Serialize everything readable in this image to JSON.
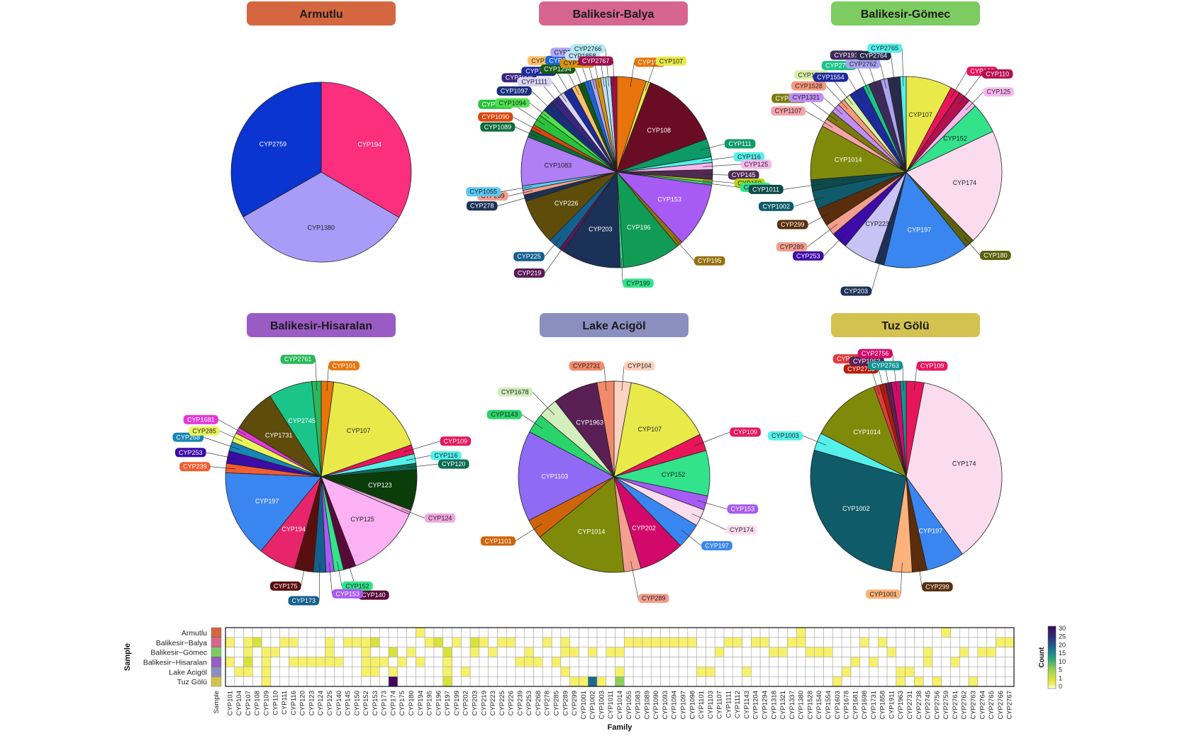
{
  "chart_data": [
    {
      "type": "pie",
      "title": "Armutlu",
      "title_color": "#d4673f",
      "series": [
        {
          "label": "CYP194",
          "value": 33.4,
          "color": "#fb2f7d"
        },
        {
          "label": "CYP1380",
          "value": 33.3,
          "color": "#a89cf8"
        },
        {
          "label": "CYP2759",
          "value": 33.3,
          "color": "#0a35d0"
        }
      ]
    },
    {
      "type": "pie",
      "title": "Balikesir-Balya",
      "title_color": "#d6668f",
      "series": [
        {
          "label": "CYP101",
          "value": 4.2,
          "color": "#e8740b"
        },
        {
          "label": "CYP107",
          "value": 0.6,
          "color": "#e9ea4a"
        },
        {
          "label": "CYP108",
          "value": 11.5,
          "color": "#6b0c25"
        },
        {
          "label": "CYP111",
          "value": 2.6,
          "color": "#0d9968"
        },
        {
          "label": "CYP116",
          "value": 0.8,
          "color": "#55f0ea"
        },
        {
          "label": "CYP125",
          "value": 1.0,
          "color": "#f5b8ed"
        },
        {
          "label": "CYP145",
          "value": 1.4,
          "color": "#4f2a52"
        },
        {
          "label": "CYP150",
          "value": 0.4,
          "color": "#b5d41a"
        },
        {
          "label": "CYP152",
          "value": 0.4,
          "color": "#33e38c"
        },
        {
          "label": "CYP153",
          "value": 9.2,
          "color": "#a85af5"
        },
        {
          "label": "CYP195",
          "value": 0.8,
          "color": "#94700e"
        },
        {
          "label": "CYP196",
          "value": 8.3,
          "color": "#119c55"
        },
        {
          "label": "CYP199",
          "value": 0.4,
          "color": "#33e38c"
        },
        {
          "label": "CYP203",
          "value": 8.5,
          "color": "#1c3158"
        },
        {
          "label": "CYP219",
          "value": 0.6,
          "color": "#5a1a5a"
        },
        {
          "label": "CYP225",
          "value": 1.8,
          "color": "#155f8f"
        },
        {
          "label": "CYP226",
          "value": 6.5,
          "color": "#5e4c0a"
        },
        {
          "label": "CYP278",
          "value": 0.9,
          "color": "#1c3158"
        },
        {
          "label": "CYP289",
          "value": 0.7,
          "color": "#f49e8e"
        },
        {
          "label": "CYP1055",
          "value": 0.6,
          "color": "#5ac8f5"
        },
        {
          "label": "CYP1083",
          "value": 7.0,
          "color": "#b07ef5"
        },
        {
          "label": "CYP1089",
          "value": 1.1,
          "color": "#0d6b3a"
        },
        {
          "label": "CYP1090",
          "value": 0.8,
          "color": "#d9470f"
        },
        {
          "label": "CYP1093",
          "value": 1.6,
          "color": "#29c23a"
        },
        {
          "label": "CYP1094",
          "value": 0.9,
          "color": "#4fe04f"
        },
        {
          "label": "CYP1097",
          "value": 1.5,
          "color": "#1a2f7a"
        },
        {
          "label": "CYP1098",
          "value": 1.3,
          "color": "#3a2580"
        },
        {
          "label": "CYP1111",
          "value": 0.9,
          "color": "#d8d4f5"
        },
        {
          "label": "CYP1112",
          "value": 1.3,
          "color": "#1c2a9a"
        },
        {
          "label": "CYP1204",
          "value": 1.0,
          "color": "#fcc06a"
        },
        {
          "label": "CYP1294",
          "value": 0.9,
          "color": "#145a0f"
        },
        {
          "label": "CYP1337",
          "value": 0.9,
          "color": "#1a66d6"
        },
        {
          "label": "CYP1380",
          "value": 0.7,
          "color": "#b0a6f5"
        },
        {
          "label": "CYP1698",
          "value": 0.8,
          "color": "#d9920d"
        },
        {
          "label": "CYP1858",
          "value": 0.7,
          "color": "#c2def5"
        },
        {
          "label": "CYP2766",
          "value": 0.7,
          "color": "#b3eaf5"
        },
        {
          "label": "CYP2767",
          "value": 0.9,
          "color": "#9a0f4e"
        }
      ]
    },
    {
      "type": "pie",
      "title": "Balikesir-Gömec",
      "title_color": "#7ccc62",
      "series": [
        {
          "label": "CYP107",
          "value": 7.5,
          "color": "#e9ea4a"
        },
        {
          "label": "CYP109",
          "value": 1.6,
          "color": "#e8155a"
        },
        {
          "label": "CYP110",
          "value": 2.0,
          "color": "#b5104e"
        },
        {
          "label": "CYP125",
          "value": 1.3,
          "color": "#f5b8ed"
        },
        {
          "label": "CYP152",
          "value": 5.0,
          "color": "#33e38c"
        },
        {
          "label": "CYP174",
          "value": 19.0,
          "color": "#fbdcef"
        },
        {
          "label": "CYP180",
          "value": 1.5,
          "color": "#5b610c"
        },
        {
          "label": "CYP197",
          "value": 14.0,
          "color": "#3a86f0"
        },
        {
          "label": "CYP203",
          "value": 1.5,
          "color": "#1c3158"
        },
        {
          "label": "CYP223",
          "value": 5.5,
          "color": "#c8c2f5"
        },
        {
          "label": "CYP253",
          "value": 2.7,
          "color": "#3d0ba8"
        },
        {
          "label": "CYP289",
          "value": 1.8,
          "color": "#f49e8e"
        },
        {
          "label": "CYP299",
          "value": 3.0,
          "color": "#5a2e0c"
        },
        {
          "label": "CYP1002",
          "value": 3.0,
          "color": "#0f5b6a"
        },
        {
          "label": "CYP1011",
          "value": 1.8,
          "color": "#0d4a4a"
        },
        {
          "label": "CYP1014",
          "value": 9.0,
          "color": "#808a0a"
        },
        {
          "label": "CYP1107",
          "value": 1.3,
          "color": "#f5a3a8"
        },
        {
          "label": "CYP1318",
          "value": 1.5,
          "color": "#7b7a0c"
        },
        {
          "label": "CYP1321",
          "value": 1.5,
          "color": "#c08ef5"
        },
        {
          "label": "CYP1528",
          "value": 1.2,
          "color": "#f59a7a"
        },
        {
          "label": "CYP1540",
          "value": 1.2,
          "color": "#d9f0a8"
        },
        {
          "label": "CYP1554",
          "value": 2.5,
          "color": "#1c2a9a"
        },
        {
          "label": "CYP2745",
          "value": 1.0,
          "color": "#1bc489"
        },
        {
          "label": "CYP1911",
          "value": 2.0,
          "color": "#3d2a5a"
        },
        {
          "label": "CYP2762",
          "value": 1.2,
          "color": "#a8a4f0"
        },
        {
          "label": "CYP2764",
          "value": 2.0,
          "color": "#2a2a4a"
        },
        {
          "label": "CYP2765",
          "value": 1.0,
          "color": "#55f0ea"
        }
      ]
    },
    {
      "type": "pie",
      "title": "Balikesir-Hisaralan",
      "title_color": "#9a5cc4",
      "series": [
        {
          "label": "CYP101",
          "value": 2.0,
          "color": "#e8740b"
        },
        {
          "label": "CYP107",
          "value": 16.5,
          "color": "#e9ea4a"
        },
        {
          "label": "CYP109",
          "value": 1.5,
          "color": "#e8155a"
        },
        {
          "label": "CYP116",
          "value": 1.5,
          "color": "#55f0ea"
        },
        {
          "label": "CYP120",
          "value": 1.0,
          "color": "#0d6b53"
        },
        {
          "label": "CYP123",
          "value": 6.5,
          "color": "#0a3d0a"
        },
        {
          "label": "CYP124",
          "value": 0.7,
          "color": "#f0a8e0"
        },
        {
          "label": "CYP125",
          "value": 12.0,
          "color": "#fcb1f5"
        },
        {
          "label": "CYP140",
          "value": 2.0,
          "color": "#5a0a3a"
        },
        {
          "label": "CYP152",
          "value": 1.5,
          "color": "#33e38c"
        },
        {
          "label": "CYP153",
          "value": 1.3,
          "color": "#a85af5"
        },
        {
          "label": "CYP173",
          "value": 2.0,
          "color": "#155f8f"
        },
        {
          "label": "CYP175",
          "value": 3.0,
          "color": "#5a0f0f"
        },
        {
          "label": "CYP194",
          "value": 6.0,
          "color": "#e8256a"
        },
        {
          "label": "CYP197",
          "value": 14.0,
          "color": "#3a86f0"
        },
        {
          "label": "CYP239",
          "value": 1.5,
          "color": "#f25c30"
        },
        {
          "label": "CYP253",
          "value": 2.0,
          "color": "#3d0ba8"
        },
        {
          "label": "CYP268",
          "value": 1.5,
          "color": "#1886b5"
        },
        {
          "label": "CYP285",
          "value": 1.5,
          "color": "#e9f55a"
        },
        {
          "label": "CYP1681",
          "value": 1.0,
          "color": "#e23ad9"
        },
        {
          "label": "CYP1731",
          "value": 7.0,
          "color": "#5e4c0a"
        },
        {
          "label": "CYP2745",
          "value": 7.0,
          "color": "#1bc489"
        },
        {
          "label": "CYP2761",
          "value": 1.5,
          "color": "#2ab858"
        }
      ]
    },
    {
      "type": "pie",
      "title": "Lake Acigöl",
      "title_color": "#8a8fbf",
      "series": [
        {
          "label": "CYP104",
          "value": 3.0,
          "color": "#fcd3c0"
        },
        {
          "label": "CYP107",
          "value": 15.5,
          "color": "#e9ea4a"
        },
        {
          "label": "CYP109",
          "value": 3.0,
          "color": "#e8155a"
        },
        {
          "label": "CYP152",
          "value": 8.0,
          "color": "#33e38c"
        },
        {
          "label": "CYP153",
          "value": 2.5,
          "color": "#a85af5"
        },
        {
          "label": "CYP174",
          "value": 3.0,
          "color": "#fbdcef"
        },
        {
          "label": "CYP197",
          "value": 4.5,
          "color": "#3a86f0"
        },
        {
          "label": "CYP202",
          "value": 8.0,
          "color": "#d2086a"
        },
        {
          "label": "CYP289",
          "value": 3.0,
          "color": "#f49e8e"
        },
        {
          "label": "CYP1014",
          "value": 16.5,
          "color": "#808a0a"
        },
        {
          "label": "CYP1101",
          "value": 3.5,
          "color": "#d0640a"
        },
        {
          "label": "CYP1103",
          "value": 16.0,
          "color": "#8f6af5"
        },
        {
          "label": "CYP1143",
          "value": 3.5,
          "color": "#2bd46a"
        },
        {
          "label": "CYP1678",
          "value": 3.5,
          "color": "#d2eebc"
        },
        {
          "label": "CYP1963",
          "value": 8.0,
          "color": "#5a1f55"
        },
        {
          "label": "CYP2731",
          "value": 3.0,
          "color": "#f28a6a"
        }
      ]
    },
    {
      "type": "pie",
      "title": "Tuz Gölü",
      "title_color": "#d3c24f",
      "series": [
        {
          "label": "CYP109",
          "value": 3.0,
          "color": "#e8155a"
        },
        {
          "label": "CYP174",
          "value": 37.0,
          "color": "#fbdcef"
        },
        {
          "label": "CYP197",
          "value": 6.5,
          "color": "#3a86f0"
        },
        {
          "label": "CYP299",
          "value": 2.5,
          "color": "#5a2e0c"
        },
        {
          "label": "CYP1001",
          "value": 3.5,
          "color": "#fcb27a"
        },
        {
          "label": "CYP1002",
          "value": 27.0,
          "color": "#0f5b6a"
        },
        {
          "label": "CYP1003",
          "value": 3.0,
          "color": "#55f0ea"
        },
        {
          "label": "CYP1014",
          "value": 12.0,
          "color": "#808a0a"
        },
        {
          "label": "CYP1603",
          "value": 1.0,
          "color": "#e23a3a"
        },
        {
          "label": "CYP2738",
          "value": 1.0,
          "color": "#b51a0a"
        },
        {
          "label": "CYP1963",
          "value": 1.0,
          "color": "#5a1f55"
        },
        {
          "label": "CYP2756",
          "value": 1.5,
          "color": "#d40a6a"
        },
        {
          "label": "CYP2763",
          "value": 1.0,
          "color": "#129494"
        }
      ]
    },
    {
      "type": "heatmap",
      "xlabel": "Family",
      "ylabel": "Sample",
      "legend_title": "Count",
      "legend_ticks": [
        30,
        25,
        20,
        15,
        10,
        5,
        1,
        0
      ],
      "samples": [
        {
          "name": "Armutlu",
          "color": "#d4673f"
        },
        {
          "name": "Balikesir−Balya",
          "color": "#d6668f"
        },
        {
          "name": "Balikesir−Gömec",
          "color": "#7ccc62"
        },
        {
          "name": "Balikesir−Hisaralan",
          "color": "#9a5cc4"
        },
        {
          "name": "Lake Acigöl",
          "color": "#8a8fbf"
        },
        {
          "name": "Tuz Gölü",
          "color": "#d3c24f"
        }
      ],
      "sample_axis_label": "Sample",
      "families": [
        "CYP101",
        "CYP104",
        "CYP107",
        "CYP108",
        "CYP109",
        "CYP110",
        "CYP111",
        "CYP116",
        "CYP120",
        "CYP123",
        "CYP124",
        "CYP125",
        "CYP140",
        "CYP145",
        "CYP150",
        "CYP152",
        "CYP153",
        "CYP173",
        "CYP174",
        "CYP175",
        "CYP180",
        "CYP194",
        "CYP195",
        "CYP196",
        "CYP197",
        "CYP199",
        "CYP202",
        "CYP203",
        "CYP219",
        "CYP223",
        "CYP225",
        "CYP226",
        "CYP239",
        "CYP253",
        "CYP268",
        "CYP278",
        "CYP285",
        "CYP289",
        "CYP299",
        "CYP1001",
        "CYP1002",
        "CYP1003",
        "CYP1011",
        "CYP1014",
        "CYP1055",
        "CYP1083",
        "CYP1089",
        "CYP1090",
        "CYP1093",
        "CYP1094",
        "CYP1097",
        "CYP1098",
        "CYP1101",
        "CYP1103",
        "CYP1107",
        "CYP1111",
        "CYP1112",
        "CYP1143",
        "CYP1204",
        "CYP1294",
        "CYP1318",
        "CYP1321",
        "CYP1337",
        "CYP1380",
        "CYP1528",
        "CYP1540",
        "CYP1554",
        "CYP1603",
        "CYP1678",
        "CYP1681",
        "CYP1698",
        "CYP1731",
        "CYP1858",
        "CYP1911",
        "CYP1963",
        "CYP2731",
        "CYP2738",
        "CYP2745",
        "CYP2756",
        "CYP2759",
        "CYP2761",
        "CYP2762",
        "CYP2763",
        "CYP2764",
        "CYP2765",
        "CYP2766",
        "CYP2767"
      ],
      "values": {
        "Armutlu": {
          "CYP194": 1,
          "CYP1380": 1,
          "CYP2759": 1
        },
        "Balikesir−Balya": {
          "CYP101": 2,
          "CYP107": 1,
          "CYP108": 9,
          "CYP111": 2,
          "CYP116": 1,
          "CYP125": 1,
          "CYP145": 1,
          "CYP150": 1,
          "CYP152": 1,
          "CYP153": 5,
          "CYP195": 1,
          "CYP196": 5,
          "CYP199": 1,
          "CYP203": 5,
          "CYP219": 1,
          "CYP225": 1,
          "CYP226": 3,
          "CYP278": 1,
          "CYP289": 1,
          "CYP1055": 1,
          "CYP1083": 4,
          "CYP1089": 1,
          "CYP1090": 1,
          "CYP1093": 1,
          "CYP1094": 1,
          "CYP1097": 1,
          "CYP1098": 1,
          "CYP1111": 1,
          "CYP1112": 1,
          "CYP1204": 1,
          "CYP1294": 1,
          "CYP1337": 1,
          "CYP1380": 1,
          "CYP1698": 1,
          "CYP1858": 1,
          "CYP2766": 1,
          "CYP2767": 1
        },
        "Balikesir−Gömec": {
          "CYP107": 3,
          "CYP109": 1,
          "CYP110": 1,
          "CYP125": 1,
          "CYP152": 2,
          "CYP174": 8,
          "CYP180": 1,
          "CYP197": 6,
          "CYP203": 1,
          "CYP223": 2,
          "CYP253": 1,
          "CYP289": 1,
          "CYP299": 1,
          "CYP1002": 1,
          "CYP1011": 1,
          "CYP1014": 4,
          "CYP1107": 1,
          "CYP1318": 1,
          "CYP1321": 1,
          "CYP1528": 1,
          "CYP1540": 1,
          "CYP1554": 1,
          "CYP1911": 1,
          "CYP2745": 1,
          "CYP2762": 1,
          "CYP2764": 1,
          "CYP2765": 1
        },
        "Balikesir−Hisaralan": {
          "CYP101": 1,
          "CYP107": 5,
          "CYP109": 1,
          "CYP116": 1,
          "CYP120": 1,
          "CYP123": 2,
          "CYP124": 1,
          "CYP125": 4,
          "CYP140": 1,
          "CYP152": 1,
          "CYP153": 1,
          "CYP173": 1,
          "CYP175": 1,
          "CYP194": 2,
          "CYP197": 4,
          "CYP239": 1,
          "CYP253": 1,
          "CYP268": 1,
          "CYP285": 1,
          "CYP1681": 1,
          "CYP1731": 2,
          "CYP2745": 2,
          "CYP2761": 1
        },
        "Lake Acigöl": {
          "CYP104": 1,
          "CYP107": 4,
          "CYP109": 1,
          "CYP152": 2,
          "CYP153": 1,
          "CYP174": 1,
          "CYP197": 1,
          "CYP202": 2,
          "CYP289": 1,
          "CYP1014": 4,
          "CYP1101": 1,
          "CYP1103": 4,
          "CYP1143": 1,
          "CYP1678": 1,
          "CYP1963": 2,
          "CYP2731": 1
        },
        "Tuz Gölü": {
          "CYP109": 1,
          "CYP174": 30,
          "CYP197": 5,
          "CYP299": 2,
          "CYP1001": 3,
          "CYP1002": 22,
          "CYP1003": 3,
          "CYP1014": 10,
          "CYP1603": 1,
          "CYP2738": 1,
          "CYP1963": 1,
          "CYP2756": 1,
          "CYP2763": 1
        }
      }
    }
  ]
}
